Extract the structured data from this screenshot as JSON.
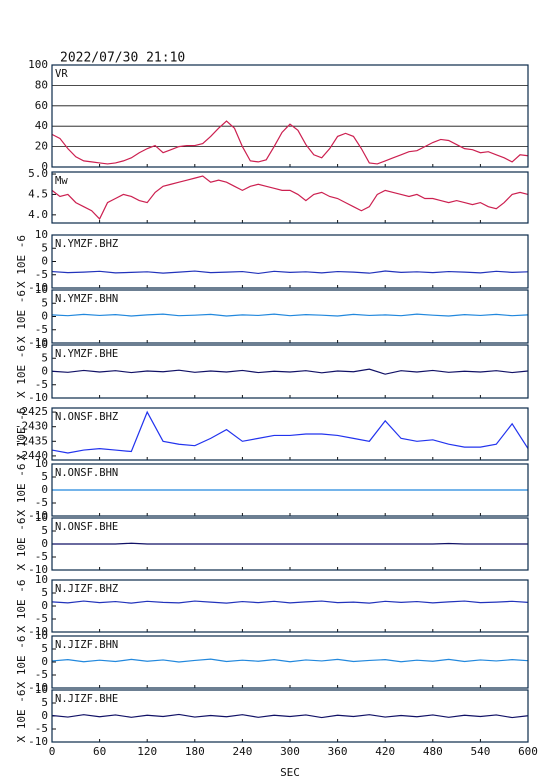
{
  "title": "2022/07/30 21:10",
  "chart_data": [
    {
      "type": "line",
      "label": "VR",
      "xlim": [
        0,
        600
      ],
      "ylim": [
        0,
        100
      ],
      "yticks": [
        0,
        20,
        40,
        60,
        80,
        100
      ],
      "grid": true,
      "x": [
        0,
        10,
        20,
        30,
        40,
        50,
        60,
        70,
        80,
        90,
        100,
        110,
        120,
        130,
        140,
        150,
        160,
        170,
        180,
        190,
        200,
        210,
        220,
        230,
        240,
        250,
        260,
        270,
        280,
        290,
        300,
        310,
        320,
        330,
        340,
        350,
        360,
        370,
        380,
        390,
        400,
        410,
        420,
        430,
        440,
        450,
        460,
        470,
        480,
        490,
        500,
        510,
        520,
        530,
        540,
        550,
        560,
        570,
        580,
        590,
        600
      ],
      "series": [
        {
          "color": "#cc2050",
          "values": [
            32,
            28,
            18,
            10,
            6,
            5,
            4,
            3,
            4,
            6,
            9,
            14,
            18,
            21,
            14,
            17,
            20,
            21,
            21,
            23,
            30,
            38,
            45,
            38,
            20,
            6,
            5,
            7,
            20,
            34,
            42,
            36,
            22,
            12,
            9,
            18,
            30,
            33,
            30,
            18,
            4,
            3,
            6,
            9,
            12,
            15,
            16,
            20,
            24,
            27,
            26,
            22,
            18,
            17,
            14,
            15,
            12,
            9,
            5,
            12,
            11
          ]
        }
      ]
    },
    {
      "type": "line",
      "label": "Mw",
      "xlim": [
        0,
        600
      ],
      "ylim": [
        3.8,
        5.05
      ],
      "yticks": [
        {
          "value": 4.0,
          "label": "4.0"
        },
        4.5,
        {
          "value": 5.0,
          "label": "5.0"
        }
      ],
      "grid": false,
      "x": [
        0,
        10,
        20,
        30,
        40,
        50,
        60,
        70,
        80,
        90,
        100,
        110,
        120,
        130,
        140,
        150,
        160,
        170,
        180,
        190,
        200,
        210,
        220,
        230,
        240,
        250,
        260,
        270,
        280,
        290,
        300,
        310,
        320,
        330,
        340,
        350,
        360,
        370,
        380,
        390,
        400,
        410,
        420,
        430,
        440,
        450,
        460,
        470,
        480,
        490,
        500,
        510,
        520,
        530,
        540,
        550,
        560,
        570,
        580,
        590,
        600
      ],
      "series": [
        {
          "color": "#cc2050",
          "values": [
            4.6,
            4.45,
            4.5,
            4.3,
            4.2,
            4.1,
            3.9,
            4.3,
            4.4,
            4.5,
            4.45,
            4.35,
            4.3,
            4.55,
            4.7,
            4.75,
            4.8,
            4.85,
            4.9,
            4.95,
            4.8,
            4.85,
            4.8,
            4.7,
            4.6,
            4.7,
            4.75,
            4.7,
            4.65,
            4.6,
            4.6,
            4.5,
            4.35,
            4.5,
            4.55,
            4.45,
            4.4,
            4.3,
            4.2,
            4.1,
            4.2,
            4.5,
            4.6,
            4.55,
            4.5,
            4.45,
            4.5,
            4.4,
            4.4,
            4.35,
            4.3,
            4.35,
            4.3,
            4.25,
            4.3,
            4.2,
            4.15,
            4.3,
            4.5,
            4.55,
            4.5
          ]
        }
      ]
    },
    {
      "type": "line",
      "label": "N.YMZF.BHZ",
      "ylabel": "X 10E -6",
      "xlim": [
        0,
        600
      ],
      "ylim": [
        -10,
        10
      ],
      "yticks": [
        -10,
        -5,
        0,
        5,
        10
      ],
      "grid": false,
      "x": [
        0,
        20,
        40,
        60,
        80,
        100,
        120,
        140,
        160,
        180,
        200,
        220,
        240,
        260,
        280,
        300,
        320,
        340,
        360,
        380,
        400,
        420,
        440,
        460,
        480,
        500,
        520,
        540,
        560,
        580,
        600
      ],
      "series": [
        {
          "color": "#2233bb",
          "values": [
            -3.8,
            -4.2,
            -4.0,
            -3.7,
            -4.3,
            -4.1,
            -3.9,
            -4.4,
            -4.0,
            -3.6,
            -4.2,
            -4.0,
            -3.8,
            -4.5,
            -3.7,
            -4.1,
            -3.9,
            -4.3,
            -3.8,
            -4.0,
            -4.4,
            -3.6,
            -4.1,
            -3.9,
            -4.2,
            -3.8,
            -4.0,
            -4.3,
            -3.7,
            -4.1,
            -3.9
          ]
        }
      ]
    },
    {
      "type": "line",
      "label": "N.YMZF.BHN",
      "ylabel": "X 10E -6",
      "xlim": [
        0,
        600
      ],
      "ylim": [
        -10,
        10
      ],
      "yticks": [
        -10,
        -5,
        0,
        5,
        10
      ],
      "grid": false,
      "x": [
        0,
        20,
        40,
        60,
        80,
        100,
        120,
        140,
        160,
        180,
        200,
        220,
        240,
        260,
        280,
        300,
        320,
        340,
        360,
        380,
        400,
        420,
        440,
        460,
        480,
        500,
        520,
        540,
        560,
        580,
        600
      ],
      "series": [
        {
          "color": "#2288dd",
          "values": [
            0.6,
            0.3,
            0.8,
            0.4,
            0.7,
            0.2,
            0.6,
            0.9,
            0.3,
            0.5,
            0.8,
            0.2,
            0.6,
            0.4,
            0.9,
            0.3,
            0.7,
            0.5,
            0.2,
            0.8,
            0.4,
            0.6,
            0.3,
            0.9,
            0.5,
            0.2,
            0.7,
            0.4,
            0.8,
            0.3,
            0.6
          ]
        }
      ]
    },
    {
      "type": "line",
      "label": "N.YMZF.BHE",
      "ylabel": "X 10E -6",
      "xlim": [
        0,
        600
      ],
      "ylim": [
        -10,
        10
      ],
      "yticks": [
        -10,
        -5,
        0,
        5,
        10
      ],
      "grid": false,
      "x": [
        0,
        20,
        40,
        60,
        80,
        100,
        120,
        140,
        160,
        180,
        200,
        220,
        240,
        260,
        280,
        300,
        320,
        340,
        360,
        380,
        400,
        420,
        440,
        460,
        480,
        500,
        520,
        540,
        560,
        580,
        600
      ],
      "series": [
        {
          "color": "#111166",
          "values": [
            0.1,
            -0.3,
            0.4,
            -0.2,
            0.3,
            -0.4,
            0.2,
            -0.1,
            0.5,
            -0.3,
            0.2,
            -0.2,
            0.4,
            -0.4,
            0.1,
            -0.2,
            0.3,
            -0.5,
            0.2,
            -0.1,
            0.9,
            -1.0,
            0.3,
            -0.2,
            0.4,
            -0.3,
            0.1,
            -0.2,
            0.3,
            -0.4,
            0.2
          ]
        }
      ]
    },
    {
      "type": "line",
      "label": "N.ONSF.BHZ",
      "ylabel": "X 10E -6",
      "xlim": [
        0,
        600
      ],
      "ylim": [
        -2441.4,
        -2423.6
      ],
      "yticks": [
        -2440,
        -2435,
        -2430,
        -2425
      ],
      "grid": false,
      "x": [
        0,
        20,
        40,
        60,
        80,
        100,
        120,
        140,
        160,
        180,
        200,
        220,
        240,
        260,
        280,
        300,
        320,
        340,
        360,
        380,
        400,
        420,
        440,
        460,
        480,
        500,
        520,
        540,
        560,
        580,
        600
      ],
      "series": [
        {
          "color": "#2233ee",
          "values": [
            -2438,
            -2439,
            -2438,
            -2437.5,
            -2438,
            -2438.5,
            -2425,
            -2435,
            -2436,
            -2436.5,
            -2434,
            -2431,
            -2435,
            -2434,
            -2433,
            -2433,
            -2432.5,
            -2432.5,
            -2433,
            -2434,
            -2435,
            -2428,
            -2434,
            -2435,
            -2434.5,
            -2436,
            -2437,
            -2437,
            -2436,
            -2429,
            -2437.5
          ]
        }
      ]
    },
    {
      "type": "line",
      "label": "N.ONSF.BHN",
      "ylabel": "X 10E -6",
      "xlim": [
        0,
        600
      ],
      "ylim": [
        -10,
        10
      ],
      "yticks": [
        -10,
        -5,
        0,
        5,
        10
      ],
      "grid": false,
      "x": [
        0,
        20,
        40,
        60,
        80,
        100,
        120,
        140,
        160,
        180,
        200,
        220,
        240,
        260,
        280,
        300,
        320,
        340,
        360,
        380,
        400,
        420,
        440,
        460,
        480,
        500,
        520,
        540,
        560,
        580,
        600
      ],
      "series": [
        {
          "color": "#2288dd",
          "values": [
            0,
            0,
            0,
            0,
            0,
            0,
            0,
            0,
            0,
            0,
            0,
            0,
            0,
            0,
            0,
            0,
            0,
            0,
            0,
            0,
            0,
            0,
            0,
            0,
            0,
            0,
            0,
            0,
            0,
            0,
            0
          ]
        }
      ]
    },
    {
      "type": "line",
      "label": "N.ONSF.BHE",
      "ylabel": "X 10E -6",
      "xlim": [
        0,
        600
      ],
      "ylim": [
        -10,
        10
      ],
      "yticks": [
        -10,
        -5,
        0,
        5,
        10
      ],
      "grid": false,
      "x": [
        0,
        20,
        40,
        60,
        80,
        100,
        120,
        140,
        160,
        180,
        200,
        220,
        240,
        260,
        280,
        300,
        320,
        340,
        360,
        380,
        400,
        420,
        440,
        460,
        480,
        500,
        520,
        540,
        560,
        580,
        600
      ],
      "series": [
        {
          "color": "#111166",
          "values": [
            0,
            0,
            0,
            0,
            0,
            0.3,
            0,
            0,
            0,
            0,
            0,
            0,
            0,
            0,
            0,
            0,
            0,
            0,
            0,
            0,
            0,
            0,
            0,
            0,
            0,
            0.2,
            0,
            0,
            0,
            0,
            0
          ]
        }
      ]
    },
    {
      "type": "line",
      "label": "N.JIZF.BHZ",
      "ylabel": "X 10E -6",
      "xlim": [
        0,
        600
      ],
      "ylim": [
        -10,
        10
      ],
      "yticks": [
        -10,
        -5,
        0,
        5,
        10
      ],
      "grid": false,
      "x": [
        0,
        20,
        40,
        60,
        80,
        100,
        120,
        140,
        160,
        180,
        200,
        220,
        240,
        260,
        280,
        300,
        320,
        340,
        360,
        380,
        400,
        420,
        440,
        460,
        480,
        500,
        520,
        540,
        560,
        580,
        600
      ],
      "series": [
        {
          "color": "#2233bb",
          "values": [
            1.6,
            1.2,
            1.9,
            1.3,
            1.7,
            1.1,
            1.8,
            1.4,
            1.2,
            1.9,
            1.5,
            1.1,
            1.7,
            1.3,
            1.8,
            1.2,
            1.6,
            1.9,
            1.3,
            1.5,
            1.1,
            1.8,
            1.4,
            1.7,
            1.2,
            1.6,
            1.9,
            1.3,
            1.5,
            1.8,
            1.4
          ]
        }
      ]
    },
    {
      "type": "line",
      "label": "N.JIZF.BHN",
      "ylabel": "X 10E -6",
      "xlim": [
        0,
        600
      ],
      "ylim": [
        -10,
        10
      ],
      "yticks": [
        -10,
        -5,
        0,
        5,
        10
      ],
      "grid": false,
      "x": [
        0,
        20,
        40,
        60,
        80,
        100,
        120,
        140,
        160,
        180,
        200,
        220,
        240,
        260,
        280,
        300,
        320,
        340,
        360,
        380,
        400,
        420,
        440,
        460,
        480,
        500,
        520,
        540,
        560,
        580,
        600
      ],
      "series": [
        {
          "color": "#2288dd",
          "values": [
            0.4,
            0.9,
            0.1,
            0.7,
            0.2,
            1.0,
            0.3,
            0.8,
            0.0,
            0.6,
            1.1,
            0.2,
            0.7,
            0.3,
            0.9,
            0.1,
            0.8,
            0.4,
            1.0,
            0.2,
            0.6,
            0.9,
            0.1,
            0.7,
            0.3,
            1.0,
            0.2,
            0.8,
            0.4,
            0.9,
            0.5
          ]
        }
      ]
    },
    {
      "type": "line",
      "label": "N.JIZF.BHE",
      "ylabel": "X 10E -6",
      "xlim": [
        0,
        600
      ],
      "ylim": [
        -10,
        10
      ],
      "yticks": [
        -10,
        -5,
        0,
        5,
        10
      ],
      "grid": false,
      "x": [
        0,
        20,
        40,
        60,
        80,
        100,
        120,
        140,
        160,
        180,
        200,
        220,
        240,
        260,
        280,
        300,
        320,
        340,
        360,
        380,
        400,
        420,
        440,
        460,
        480,
        500,
        520,
        540,
        560,
        580,
        600
      ],
      "series": [
        {
          "color": "#111166",
          "values": [
            0.2,
            -0.4,
            0.5,
            -0.3,
            0.4,
            -0.5,
            0.3,
            -0.2,
            0.6,
            -0.4,
            0.2,
            -0.3,
            0.5,
            -0.5,
            0.3,
            -0.2,
            0.4,
            -0.6,
            0.3,
            -0.2,
            0.5,
            -0.4,
            0.2,
            -0.3,
            0.4,
            -0.5,
            0.3,
            -0.2,
            0.4,
            -0.6,
            0.1
          ]
        }
      ],
      "xticks": [
        0,
        60,
        120,
        180,
        240,
        300,
        360,
        420,
        480,
        540,
        600
      ],
      "xlabel": "SEC"
    }
  ]
}
